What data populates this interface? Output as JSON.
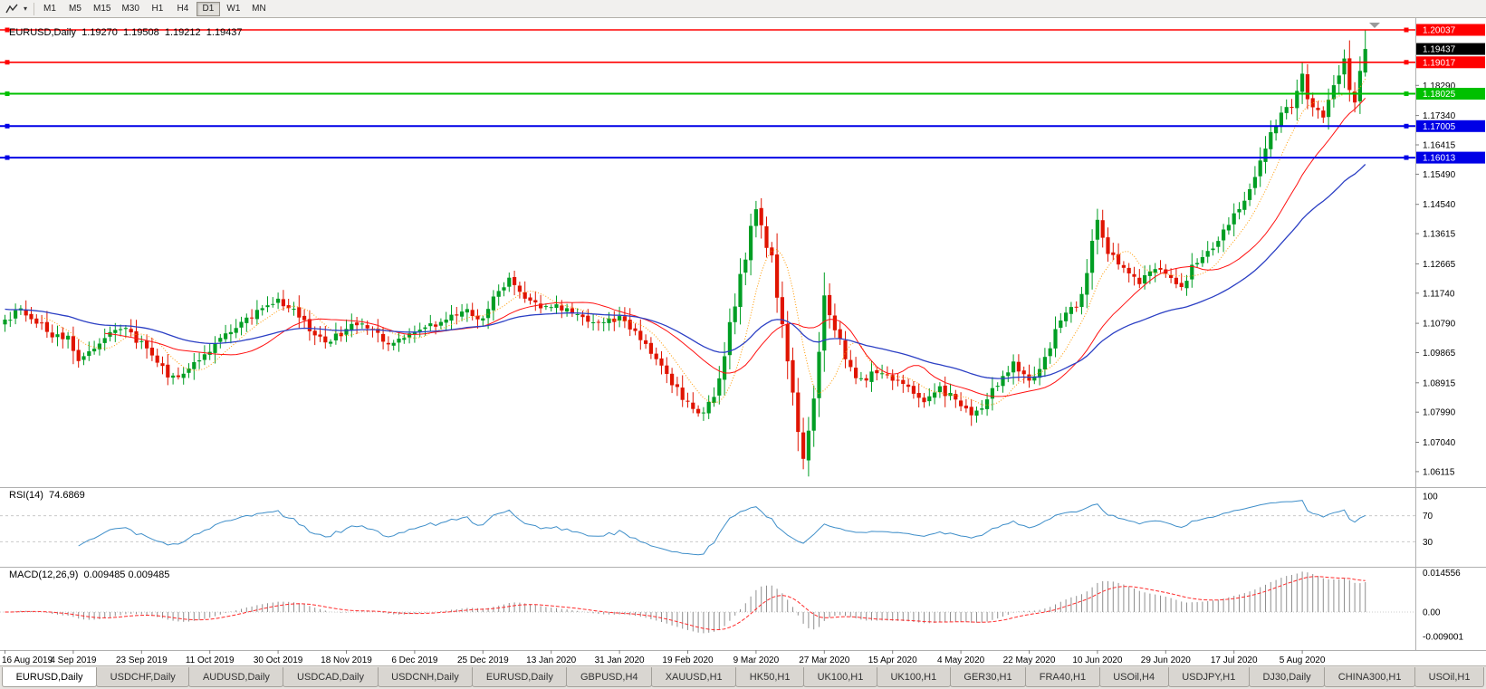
{
  "toolbar": {
    "tool_icons": [
      {
        "name": "line-studies-icon"
      },
      {
        "name": "tool-dropdown-icon"
      }
    ],
    "timeframes": [
      {
        "label": "M1",
        "active": false
      },
      {
        "label": "M5",
        "active": false
      },
      {
        "label": "M15",
        "active": false
      },
      {
        "label": "M30",
        "active": false
      },
      {
        "label": "H1",
        "active": false
      },
      {
        "label": "H4",
        "active": false
      },
      {
        "label": "D1",
        "active": true
      },
      {
        "label": "W1",
        "active": false
      },
      {
        "label": "MN",
        "active": false
      }
    ]
  },
  "chart": {
    "title": "EURUSD,Daily",
    "open": "1.19270",
    "high": "1.19508",
    "low": "1.19212",
    "close": "1.19437"
  },
  "chart_data": {
    "type": "candlestick",
    "symbol": "EURUSD",
    "timeframe": "Daily",
    "panels": [
      "price",
      "RSI",
      "MACD"
    ],
    "bars": 260,
    "last_close": "1.19437",
    "last_high": "1.20030",
    "y_axis": {
      "min": 1.05628,
      "max": 1.20409,
      "plain_ticks": [
        "1.18290",
        "1.17340",
        "1.16415",
        "1.15490",
        "1.14540",
        "1.13615",
        "1.12665",
        "1.11740",
        "1.10790",
        "1.09865",
        "1.08915",
        "1.07990",
        "1.07040",
        "1.06115"
      ]
    },
    "price_badges": [
      {
        "value": "1.20037",
        "color": "#ff0000"
      },
      {
        "value": "1.19437",
        "color": "#000000"
      },
      {
        "value": "1.19017",
        "color": "#ff0000"
      },
      {
        "value": "1.18025",
        "color": "#00c000"
      },
      {
        "value": "1.17005",
        "color": "#0000e6"
      },
      {
        "value": "1.16013",
        "color": "#0000e6"
      }
    ],
    "hlines": [
      {
        "price": 1.20037,
        "color": "#ff0000",
        "width": 1.6
      },
      {
        "price": 1.19017,
        "color": "#ff0000",
        "width": 1.6
      },
      {
        "price": 1.18025,
        "color": "#00c000",
        "width": 2
      },
      {
        "price": 1.17005,
        "color": "#0000e6",
        "width": 2
      },
      {
        "price": 1.16013,
        "color": "#0000e6",
        "width": 2
      }
    ],
    "date_labels": [
      {
        "bar": 0,
        "label": "16 Aug 2019"
      },
      {
        "bar": 13,
        "label": "4 Sep 2019"
      },
      {
        "bar": 26,
        "label": "23 Sep 2019"
      },
      {
        "bar": 39,
        "label": "11 Oct 2019"
      },
      {
        "bar": 52,
        "label": "30 Oct 2019"
      },
      {
        "bar": 65,
        "label": "18 Nov 2019"
      },
      {
        "bar": 78,
        "label": "6 Dec 2019"
      },
      {
        "bar": 91,
        "label": "25 Dec 2019"
      },
      {
        "bar": 104,
        "label": "13 Jan 2020"
      },
      {
        "bar": 117,
        "label": "31 Jan 2020"
      },
      {
        "bar": 130,
        "label": "19 Feb 2020"
      },
      {
        "bar": 143,
        "label": "9 Mar 2020"
      },
      {
        "bar": 156,
        "label": "27 Mar 2020"
      },
      {
        "bar": 169,
        "label": "15 Apr 2020"
      },
      {
        "bar": 182,
        "label": "4 May 2020"
      },
      {
        "bar": 195,
        "label": "22 May 2020"
      },
      {
        "bar": 208,
        "label": "10 Jun 2020"
      },
      {
        "bar": 221,
        "label": "29 Jun 2020"
      },
      {
        "bar": 234,
        "label": "17 Jul 2020"
      },
      {
        "bar": 247,
        "label": "5 Aug 2020"
      }
    ],
    "close_anchors": [
      [
        0,
        1.109
      ],
      [
        3,
        1.112
      ],
      [
        6,
        1.1085
      ],
      [
        9,
        1.104
      ],
      [
        12,
        1.1035
      ],
      [
        14,
        1.0968
      ],
      [
        17,
        1.0998
      ],
      [
        20,
        1.1042
      ],
      [
        23,
        1.1068
      ],
      [
        26,
        1.1012
      ],
      [
        29,
        1.0955
      ],
      [
        32,
        1.0902
      ],
      [
        35,
        1.0932
      ],
      [
        38,
        1.0985
      ],
      [
        41,
        1.103
      ],
      [
        44,
        1.1062
      ],
      [
        48,
        1.112
      ],
      [
        52,
        1.1152
      ],
      [
        55,
        1.1118
      ],
      [
        58,
        1.1062
      ],
      [
        61,
        1.1015
      ],
      [
        64,
        1.1048
      ],
      [
        67,
        1.1078
      ],
      [
        70,
        1.1062
      ],
      [
        73,
        1.1018
      ],
      [
        76,
        1.1042
      ],
      [
        79,
        1.1068
      ],
      [
        82,
        1.1075
      ],
      [
        85,
        1.1102
      ],
      [
        88,
        1.1118
      ],
      [
        91,
        1.1092
      ],
      [
        94,
        1.118
      ],
      [
        96,
        1.1212
      ],
      [
        99,
        1.1165
      ],
      [
        102,
        1.1125
      ],
      [
        105,
        1.1138
      ],
      [
        108,
        1.1108
      ],
      [
        111,
        1.1092
      ],
      [
        114,
        1.1082
      ],
      [
        117,
        1.1095
      ],
      [
        120,
        1.1058
      ],
      [
        123,
        1.0988
      ],
      [
        126,
        1.0925
      ],
      [
        129,
        1.0838
      ],
      [
        132,
        1.0792
      ],
      [
        135,
        1.0848
      ],
      [
        137,
        1.0988
      ],
      [
        139,
        1.1142
      ],
      [
        141,
        1.1285
      ],
      [
        143,
        1.1452
      ],
      [
        144,
        1.1405
      ],
      [
        146,
        1.127
      ],
      [
        148,
        1.1068
      ],
      [
        150,
        1.0842
      ],
      [
        152,
        1.0648
      ],
      [
        154,
        1.0818
      ],
      [
        156,
        1.1145
      ],
      [
        158,
        1.1062
      ],
      [
        160,
        1.0968
      ],
      [
        163,
        1.0892
      ],
      [
        166,
        1.0932
      ],
      [
        169,
        1.0908
      ],
      [
        172,
        1.0868
      ],
      [
        175,
        1.0822
      ],
      [
        178,
        1.0872
      ],
      [
        181,
        1.0838
      ],
      [
        184,
        1.0788
      ],
      [
        186,
        1.0815
      ],
      [
        189,
        1.0892
      ],
      [
        192,
        1.0952
      ],
      [
        195,
        1.0898
      ],
      [
        198,
        1.0975
      ],
      [
        201,
        1.1098
      ],
      [
        204,
        1.1135
      ],
      [
        206,
        1.1252
      ],
      [
        208,
        1.1415
      ],
      [
        210,
        1.1302
      ],
      [
        213,
        1.1248
      ],
      [
        216,
        1.1205
      ],
      [
        219,
        1.1252
      ],
      [
        221,
        1.1238
      ],
      [
        224,
        1.1188
      ],
      [
        227,
        1.1282
      ],
      [
        230,
        1.1312
      ],
      [
        233,
        1.1398
      ],
      [
        235,
        1.1442
      ],
      [
        237,
        1.1512
      ],
      [
        239,
        1.1588
      ],
      [
        241,
        1.1682
      ],
      [
        243,
        1.1748
      ],
      [
        245,
        1.1772
      ],
      [
        247,
        1.1862
      ],
      [
        249,
        1.1752
      ],
      [
        251,
        1.1728
      ],
      [
        253,
        1.1822
      ],
      [
        255,
        1.1928
      ],
      [
        256,
        1.1838
      ],
      [
        257,
        1.1792
      ],
      [
        258,
        1.1895
      ],
      [
        259,
        1.19437
      ]
    ],
    "moving_averages": [
      {
        "period": 8,
        "method": "sma",
        "color": "#ff9900",
        "style": "dotted"
      },
      {
        "period": 20,
        "method": "sma",
        "color": "#ff1111",
        "style": "solid"
      },
      {
        "period": 45,
        "method": "ema",
        "color": "#2b3fc4",
        "style": "solid"
      }
    ],
    "indicators": {
      "rsi": {
        "name": "RSI(14)",
        "value": "74.6869",
        "period": 14,
        "levels": [
          "100",
          "70",
          "30"
        ],
        "color": "#3e8ec9"
      },
      "macd": {
        "name": "MACD(12,26,9)",
        "value": "0.009485 0.009485",
        "axis_labels": [
          "0.014556",
          "0.00",
          "-0.009001"
        ],
        "histogram_color": "#8f8f8f",
        "signal_color": "#ff2a2a"
      }
    }
  },
  "tabs": [
    {
      "label": "EURUSD,Daily",
      "active": true
    },
    {
      "label": "USDCHF,Daily",
      "active": false
    },
    {
      "label": "AUDUSD,Daily",
      "active": false
    },
    {
      "label": "USDCAD,Daily",
      "active": false
    },
    {
      "label": "USDCNH,Daily",
      "active": false
    },
    {
      "label": "EURUSD,Daily",
      "active": false
    },
    {
      "label": "GBPUSD,H4",
      "active": false
    },
    {
      "label": "XAUUSD,H1",
      "active": false
    },
    {
      "label": "HK50,H1",
      "active": false
    },
    {
      "label": "UK100,H1",
      "active": false
    },
    {
      "label": "UK100,H1",
      "active": false
    },
    {
      "label": "GER30,H1",
      "active": false
    },
    {
      "label": "FRA40,H1",
      "active": false
    },
    {
      "label": "USOil,H4",
      "active": false
    },
    {
      "label": "USDJPY,H1",
      "active": false
    },
    {
      "label": "DJ30,Daily",
      "active": false
    },
    {
      "label": "CHINA300,H1",
      "active": false
    },
    {
      "label": "USOil,H1",
      "active": false
    }
  ]
}
